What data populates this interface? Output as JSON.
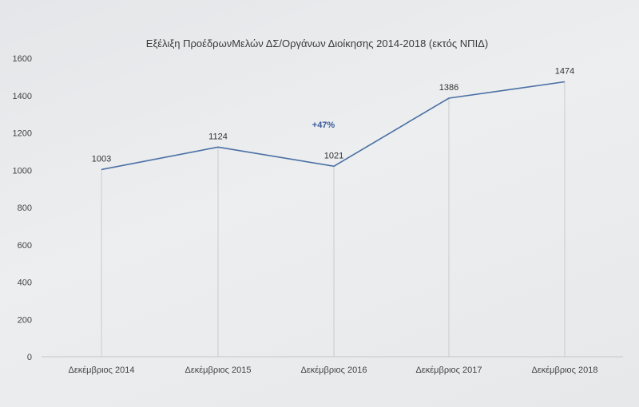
{
  "chart_data": {
    "type": "line",
    "title": "Εξέλιξη ΠροέδρωνΜελών ΔΣ/Οργάνων Διοίκησης 2014-2018 (εκτός ΝΠΙΔ)",
    "categories": [
      "Δεκέμβριος 2014",
      "Δεκέμβριος 2015",
      "Δεκέμβριος 2016",
      "Δεκέμβριος 2017",
      "Δεκέμβριος 2018"
    ],
    "values": [
      1003,
      1124,
      1021,
      1386,
      1474
    ],
    "data_labels": [
      "1003",
      "1124",
      "1021",
      "1386",
      "1474"
    ],
    "ylim": [
      0,
      1600
    ],
    "yticks": [
      "0",
      "200",
      "400",
      "600",
      "800",
      "1000",
      "1200",
      "1400",
      "1600"
    ],
    "annotation": "+47%",
    "line_color": "#4a6fa5",
    "grid": "vertical drop lines",
    "legend": "none"
  }
}
